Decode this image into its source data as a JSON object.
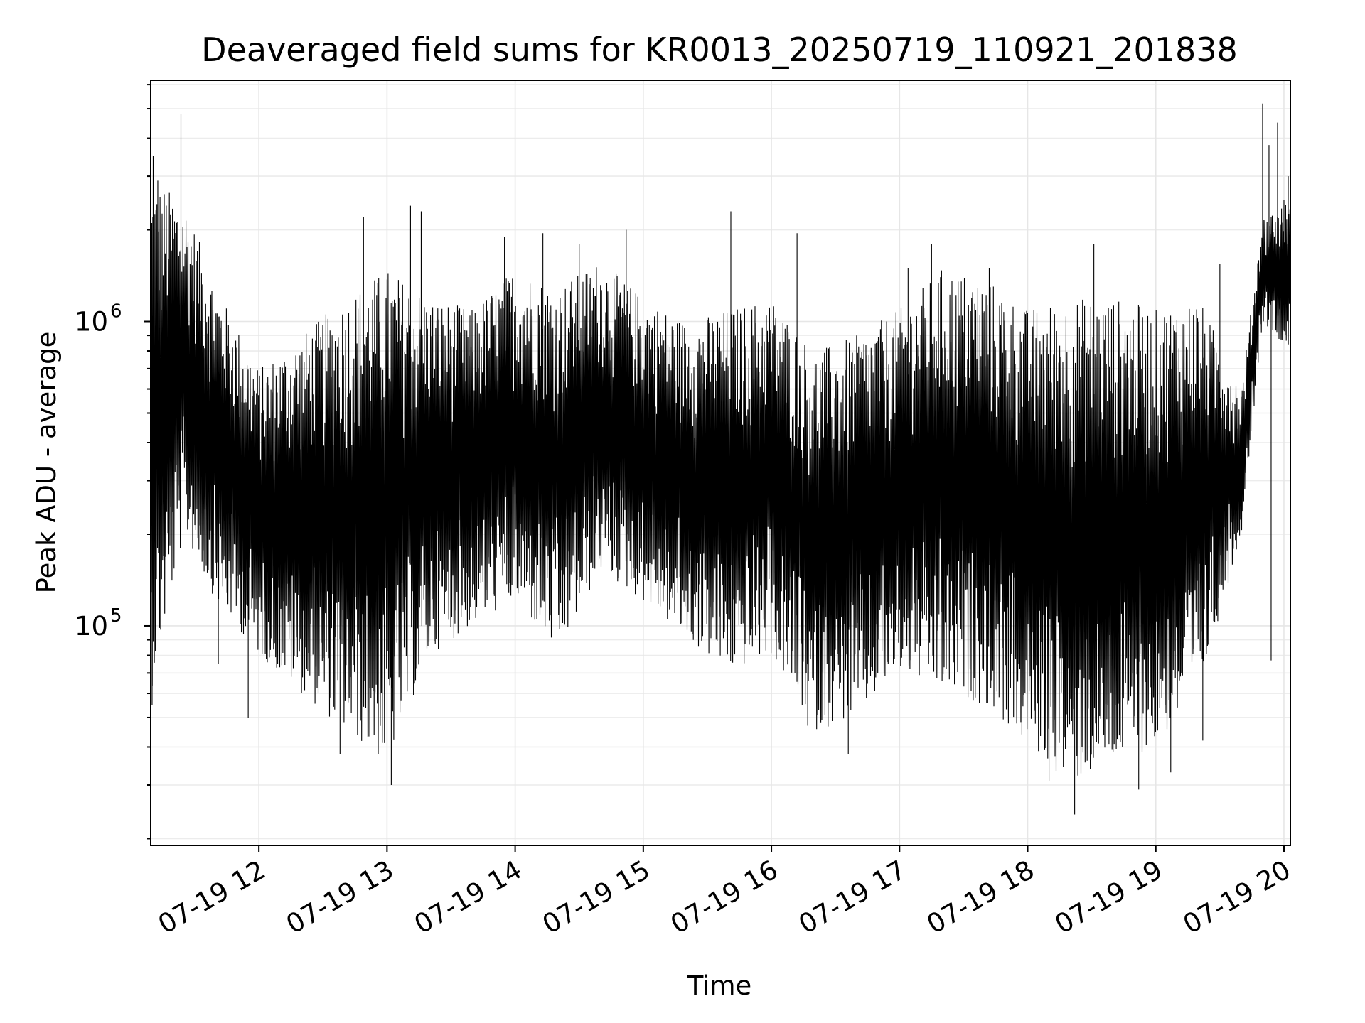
{
  "chart_data": {
    "type": "line",
    "title": "Deaveraged field sums for KR0013_20250719_110921_201838",
    "xlabel": "Time",
    "ylabel": "Peak ADU - average",
    "yscale": "log",
    "grid": true,
    "xlim": [
      "2025-07-19T11:09:21",
      "2025-07-19T20:03:00"
    ],
    "ylim": [
      19000,
      6200000
    ],
    "x_ticks": [
      {
        "value": "2025-07-19T12:00:00",
        "label": "07-19 12"
      },
      {
        "value": "2025-07-19T13:00:00",
        "label": "07-19 13"
      },
      {
        "value": "2025-07-19T14:00:00",
        "label": "07-19 14"
      },
      {
        "value": "2025-07-19T15:00:00",
        "label": "07-19 15"
      },
      {
        "value": "2025-07-19T16:00:00",
        "label": "07-19 16"
      },
      {
        "value": "2025-07-19T17:00:00",
        "label": "07-19 17"
      },
      {
        "value": "2025-07-19T18:00:00",
        "label": "07-19 18"
      },
      {
        "value": "2025-07-19T19:00:00",
        "label": "07-19 19"
      },
      {
        "value": "2025-07-19T20:00:00",
        "label": "07-19 20"
      }
    ],
    "y_ticks": [
      {
        "value": 100000,
        "label_base": "10",
        "label_exp": "5"
      },
      {
        "value": 1000000,
        "label_base": "10",
        "label_exp": "6"
      }
    ],
    "series": [
      {
        "color": "#000000",
        "envelope": [
          {
            "x": "2025-07-19T11:09:21",
            "low": 60000,
            "high": 3000000
          },
          {
            "x": "2025-07-19T11:25:00",
            "low": 200000,
            "high": 2500000
          },
          {
            "x": "2025-07-19T11:40:00",
            "low": 120000,
            "high": 1300000
          },
          {
            "x": "2025-07-19T12:00:00",
            "low": 80000,
            "high": 700000
          },
          {
            "x": "2025-07-19T12:20:00",
            "low": 60000,
            "high": 900000
          },
          {
            "x": "2025-07-19T12:40:00",
            "low": 45000,
            "high": 1200000
          },
          {
            "x": "2025-07-19T13:00:00",
            "low": 35000,
            "high": 1500000
          },
          {
            "x": "2025-07-19T13:20:00",
            "low": 80000,
            "high": 1200000
          },
          {
            "x": "2025-07-19T13:40:00",
            "low": 100000,
            "high": 1100000
          },
          {
            "x": "2025-07-19T14:00:00",
            "low": 120000,
            "high": 1500000
          },
          {
            "x": "2025-07-19T14:20:00",
            "low": 80000,
            "high": 1300000
          },
          {
            "x": "2025-07-19T14:40:00",
            "low": 150000,
            "high": 1600000
          },
          {
            "x": "2025-07-19T15:00:00",
            "low": 120000,
            "high": 1200000
          },
          {
            "x": "2025-07-19T15:20:00",
            "low": 90000,
            "high": 1000000
          },
          {
            "x": "2025-07-19T15:40:00",
            "low": 70000,
            "high": 1100000
          },
          {
            "x": "2025-07-19T16:00:00",
            "low": 80000,
            "high": 1200000
          },
          {
            "x": "2025-07-19T16:20:00",
            "low": 45000,
            "high": 800000
          },
          {
            "x": "2025-07-19T16:40:00",
            "low": 50000,
            "high": 900000
          },
          {
            "x": "2025-07-19T17:00:00",
            "low": 70000,
            "high": 1100000
          },
          {
            "x": "2025-07-19T17:20:00",
            "low": 60000,
            "high": 1500000
          },
          {
            "x": "2025-07-19T17:40:00",
            "low": 55000,
            "high": 1400000
          },
          {
            "x": "2025-07-19T18:00:00",
            "low": 40000,
            "high": 1100000
          },
          {
            "x": "2025-07-19T18:20:00",
            "low": 30000,
            "high": 1200000
          },
          {
            "x": "2025-07-19T18:40:00",
            "low": 35000,
            "high": 1200000
          },
          {
            "x": "2025-07-19T19:00:00",
            "low": 40000,
            "high": 1100000
          },
          {
            "x": "2025-07-19T19:20:00",
            "low": 60000,
            "high": 1200000
          },
          {
            "x": "2025-07-19T19:40:00",
            "low": 200000,
            "high": 600000
          },
          {
            "x": "2025-07-19T19:50:00",
            "low": 1000000,
            "high": 2200000
          },
          {
            "x": "2025-07-19T20:03:00",
            "low": 800000,
            "high": 2500000
          }
        ],
        "spikes": [
          {
            "x": "2025-07-19T11:10:30",
            "y": 3500000
          },
          {
            "x": "2025-07-19T11:12:40",
            "y": 2900000
          },
          {
            "x": "2025-07-19T11:23:30",
            "y": 4800000
          },
          {
            "x": "2025-07-19T11:10:00",
            "y": 55000
          },
          {
            "x": "2025-07-19T11:41:00",
            "y": 75000
          },
          {
            "x": "2025-07-19T11:55:00",
            "y": 50000
          },
          {
            "x": "2025-07-19T12:38:00",
            "y": 38000
          },
          {
            "x": "2025-07-19T12:49:00",
            "y": 2200000
          },
          {
            "x": "2025-07-19T13:02:00",
            "y": 30000
          },
          {
            "x": "2025-07-19T13:07:00",
            "y": 1000000
          },
          {
            "x": "2025-07-19T13:11:00",
            "y": 2400000
          },
          {
            "x": "2025-07-19T13:16:00",
            "y": 2300000
          },
          {
            "x": "2025-07-19T13:55:00",
            "y": 1900000
          },
          {
            "x": "2025-07-19T14:13:00",
            "y": 1950000
          },
          {
            "x": "2025-07-19T14:30:00",
            "y": 1800000
          },
          {
            "x": "2025-07-19T14:52:00",
            "y": 2000000
          },
          {
            "x": "2025-07-19T15:41:00",
            "y": 2300000
          },
          {
            "x": "2025-07-19T16:12:00",
            "y": 1950000
          },
          {
            "x": "2025-07-19T16:17:00",
            "y": 47000
          },
          {
            "x": "2025-07-19T16:36:00",
            "y": 38000
          },
          {
            "x": "2025-07-19T17:04:00",
            "y": 1500000
          },
          {
            "x": "2025-07-19T17:15:00",
            "y": 1800000
          },
          {
            "x": "2025-07-19T17:42:00",
            "y": 1500000
          },
          {
            "x": "2025-07-19T18:10:00",
            "y": 31000
          },
          {
            "x": "2025-07-19T18:22:00",
            "y": 24000
          },
          {
            "x": "2025-07-19T18:31:00",
            "y": 1800000
          },
          {
            "x": "2025-07-19T18:52:00",
            "y": 29000
          },
          {
            "x": "2025-07-19T19:07:00",
            "y": 33000
          },
          {
            "x": "2025-07-19T19:22:00",
            "y": 42000
          },
          {
            "x": "2025-07-19T19:30:00",
            "y": 1550000
          },
          {
            "x": "2025-07-19T19:50:00",
            "y": 5200000
          },
          {
            "x": "2025-07-19T19:53:00",
            "y": 3800000
          },
          {
            "x": "2025-07-19T19:54:00",
            "y": 77000
          },
          {
            "x": "2025-07-19T19:57:00",
            "y": 4500000
          },
          {
            "x": "2025-07-19T20:00:00",
            "y": 2500000
          },
          {
            "x": "2025-07-19T20:02:00",
            "y": 3000000
          }
        ]
      }
    ]
  }
}
